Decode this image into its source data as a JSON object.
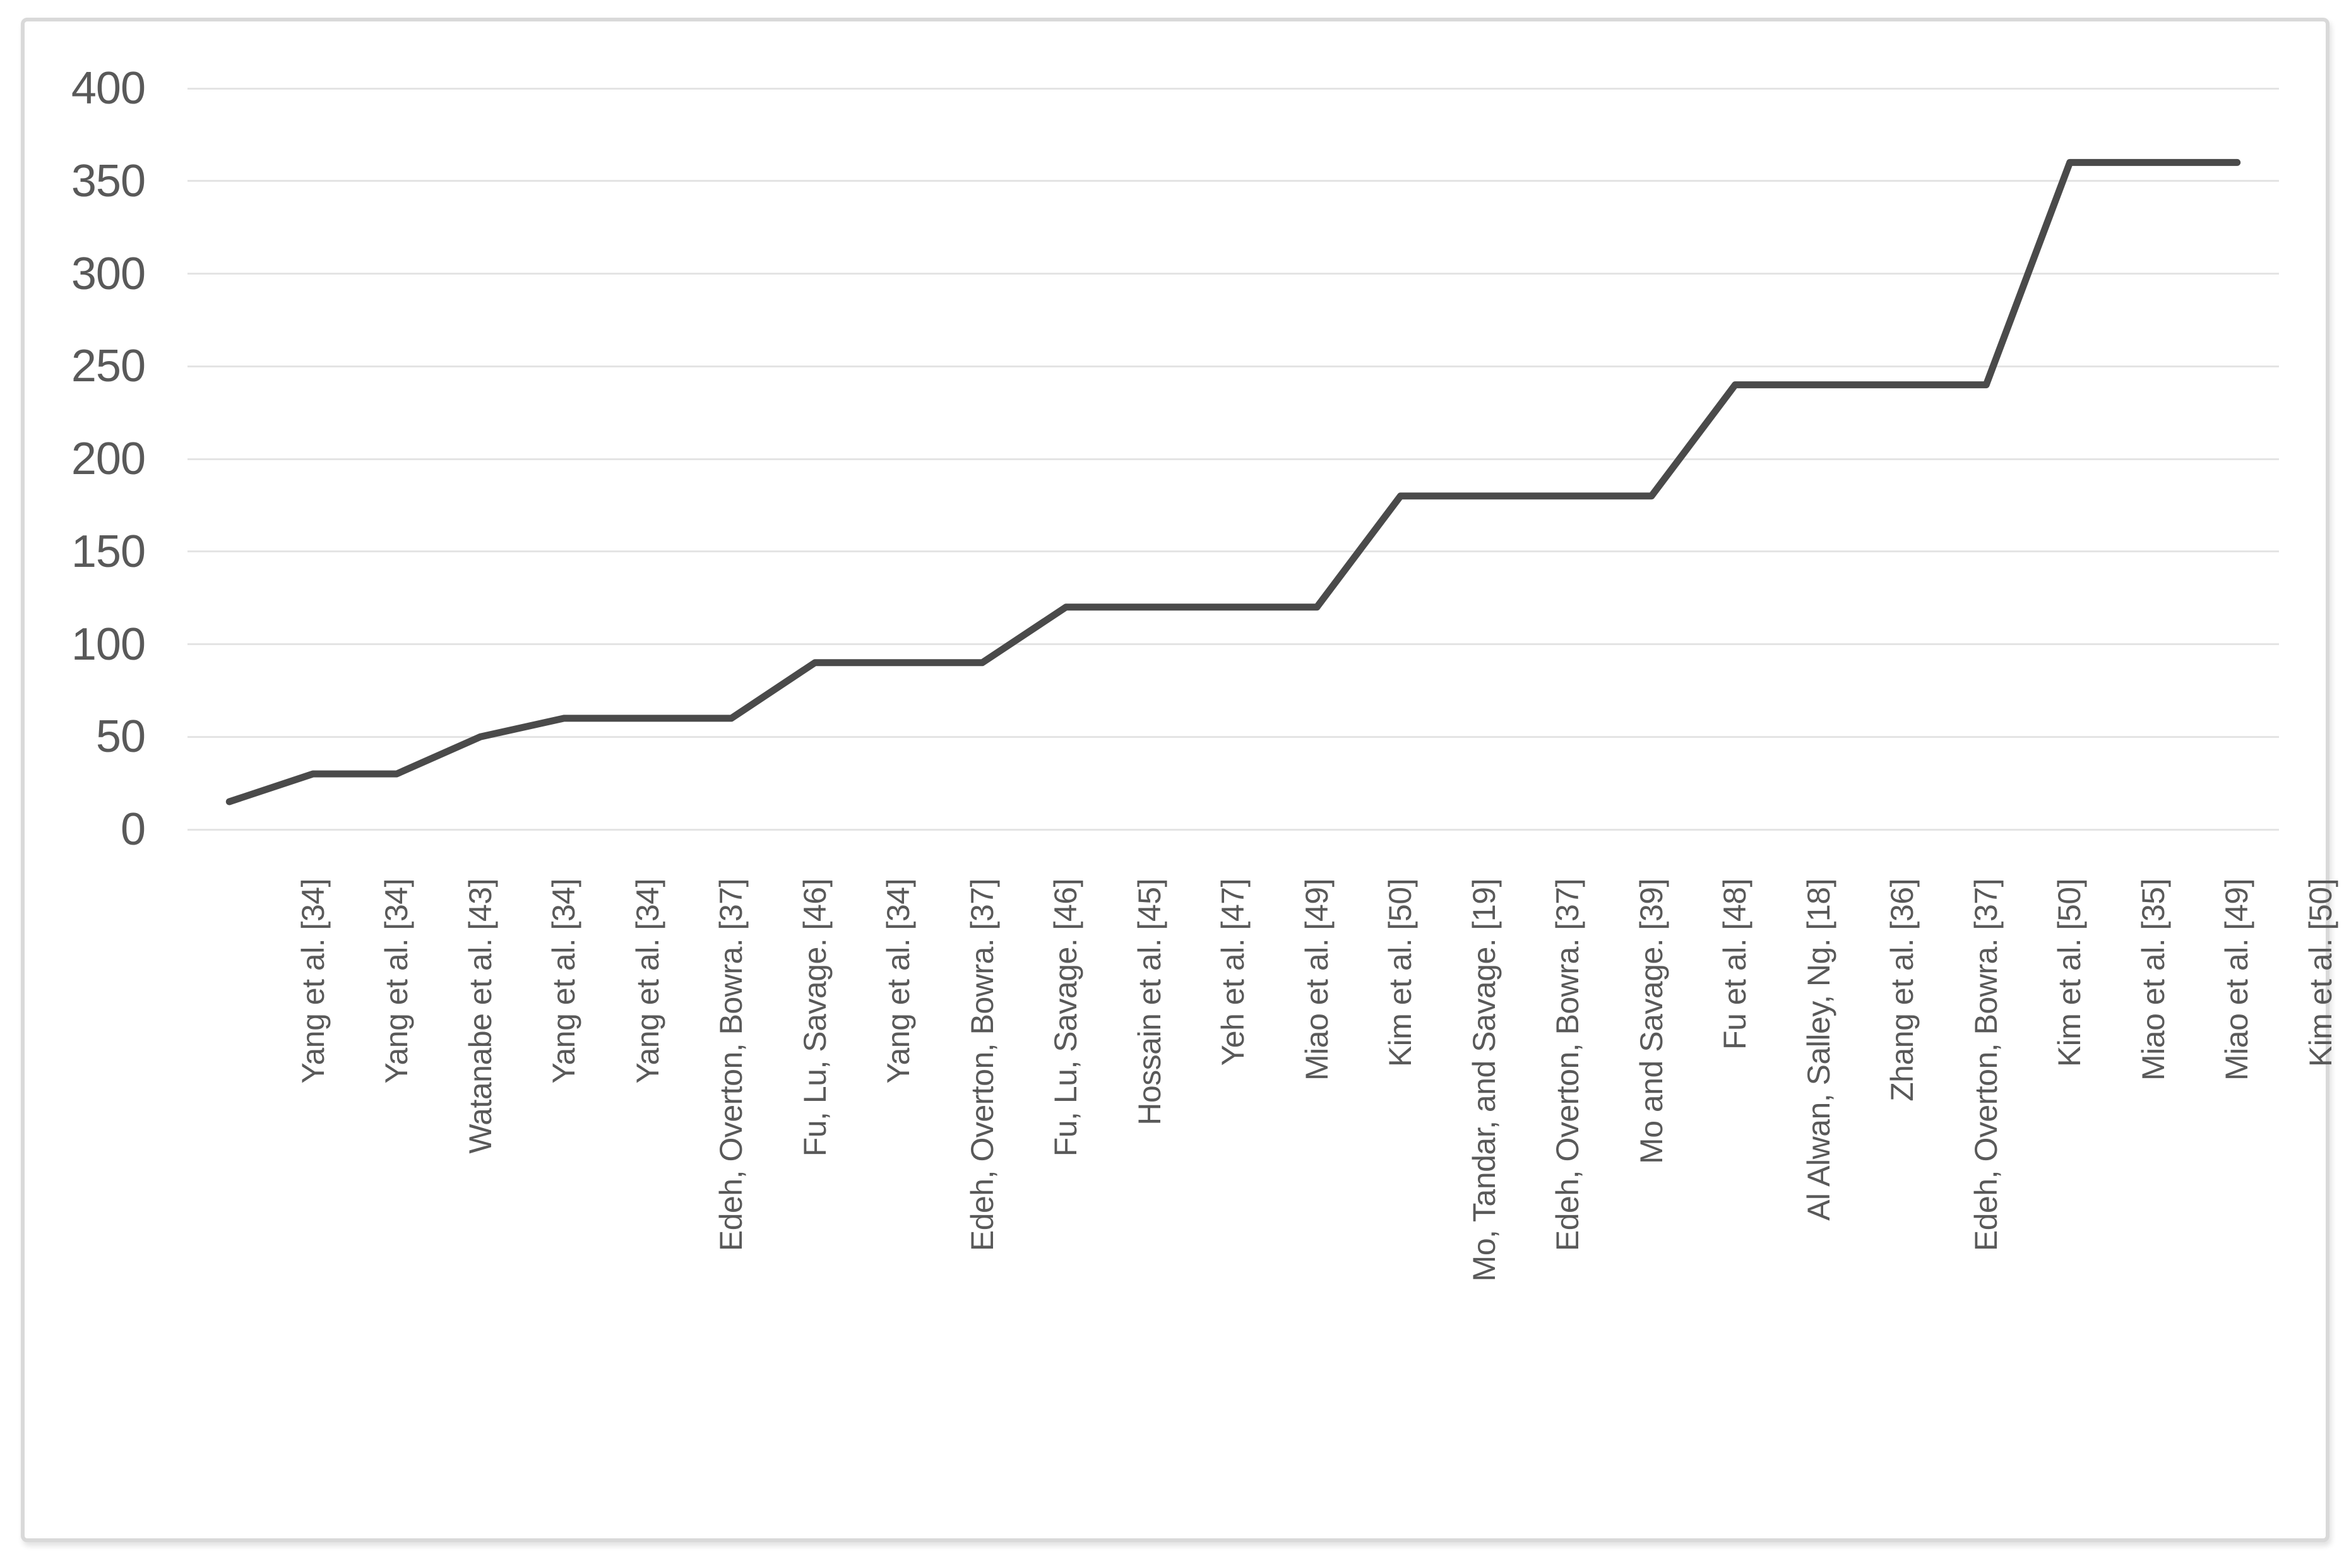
{
  "chart_data": {
    "type": "line",
    "title": "",
    "xlabel": "",
    "ylabel": "",
    "categories": [
      "Yang et al. [34]",
      "Yang et al. [34]",
      "Watanabe et al. [43]",
      "Yang et al. [34]",
      "Yang et al. [34]",
      "Edeh, Overton, Bowra. [37]",
      "Fu, Lu, Savage. [46]",
      "Yang et al. [34]",
      "Edeh, Overton, Bowra. [37]",
      "Fu, Lu, Savage. [46]",
      "Hossain et al. [45]",
      "Yeh et al. [47]",
      "Miao et al. [49]",
      "Kim et al. [50]",
      "Mo, Tandar, and Savage. [19]",
      "Edeh, Overton, Bowra. [37]",
      "Mo and Savage. [39]",
      "Fu et al. [48]",
      "Al Alwan, Salley, Ng. [18]",
      "Zhang et al. [36]",
      "Edeh, Overton, Bowra. [37]",
      "Kim et al. [50]",
      "Miao et al. [35]",
      "Miao et al. [49]",
      "Kim et al. [50]"
    ],
    "values": [
      15,
      30,
      30,
      50,
      60,
      60,
      60,
      90,
      90,
      90,
      120,
      120,
      120,
      120,
      180,
      180,
      180,
      180,
      240,
      240,
      240,
      240,
      360,
      360,
      360
    ],
    "ylim": [
      0,
      400
    ],
    "y_ticks": [
      0,
      50,
      100,
      150,
      200,
      250,
      300,
      350,
      400
    ],
    "grid": true,
    "legend": false,
    "colors": {
      "line": "#4a4a4a",
      "gridline": "#e4e4e4",
      "tick_label": "#595959",
      "frame_border": "#d9d9d9",
      "background": "#ffffff"
    }
  }
}
